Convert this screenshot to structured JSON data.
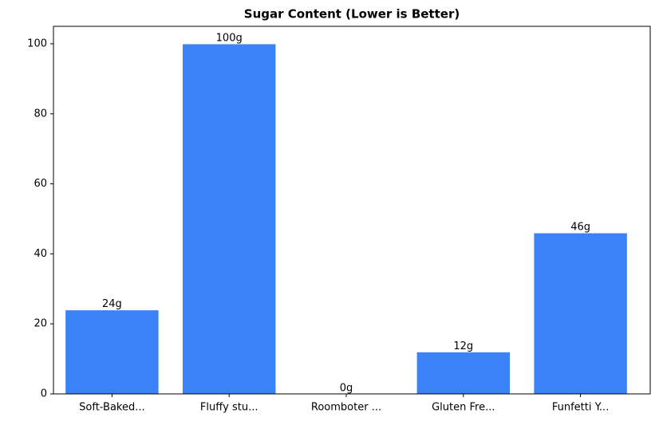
{
  "chart_data": {
    "type": "bar",
    "title": "Sugar Content (Lower is Better)",
    "categories": [
      "Soft-Baked...",
      "Fluffy stu...",
      "Roomboter ...",
      "Gluten Fre...",
      "Funfetti Y..."
    ],
    "values": [
      24,
      100,
      0,
      12,
      46
    ],
    "value_labels": [
      "24g",
      "100g",
      "0g",
      "12g",
      "46g"
    ],
    "color": "#3b82f6",
    "ylim": [
      0,
      105
    ],
    "yticks": [
      0,
      20,
      40,
      60,
      80,
      100
    ],
    "grid": false
  }
}
